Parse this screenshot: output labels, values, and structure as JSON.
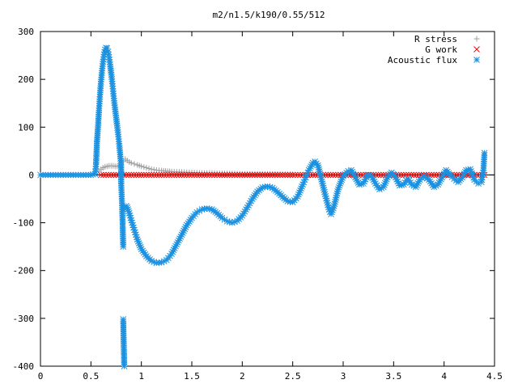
{
  "chart_data": {
    "type": "scatter",
    "title": "m2/n1.5/k190/0.55/512",
    "xlabel": "",
    "ylabel": "",
    "xlim": [
      0,
      4.5
    ],
    "ylim": [
      -400,
      300
    ],
    "x_ticks": [
      {
        "value": 0,
        "label": "0"
      },
      {
        "value": 0.5,
        "label": "0.5"
      },
      {
        "value": 1,
        "label": "1"
      },
      {
        "value": 1.5,
        "label": "1.5"
      },
      {
        "value": 2,
        "label": "2"
      },
      {
        "value": 2.5,
        "label": "2.5"
      },
      {
        "value": 3,
        "label": "3"
      },
      {
        "value": 3.5,
        "label": "3.5"
      },
      {
        "value": 4,
        "label": "4"
      },
      {
        "value": 4.5,
        "label": "4.5"
      }
    ],
    "y_ticks": [
      {
        "value": 300,
        "label": "300"
      },
      {
        "value": 200,
        "label": "200"
      },
      {
        "value": 100,
        "label": "100"
      },
      {
        "value": 0,
        "label": "0"
      },
      {
        "value": -100,
        "label": "-100"
      },
      {
        "value": -200,
        "label": "-200"
      },
      {
        "value": -300,
        "label": "-300"
      },
      {
        "value": -400,
        "label": "-400"
      }
    ],
    "grid": false,
    "legend_position": "top-right",
    "series": [
      {
        "name": "R stress",
        "marker": "plus",
        "color": "#a0a0a0",
        "points": [
          [
            0.58,
            8
          ],
          [
            0.6,
            12
          ],
          [
            0.62,
            15
          ],
          [
            0.64,
            17
          ],
          [
            0.66,
            18
          ],
          [
            0.68,
            19
          ],
          [
            0.7,
            19
          ],
          [
            0.72,
            19
          ],
          [
            0.74,
            18
          ],
          [
            0.76,
            18
          ],
          [
            0.78,
            19
          ],
          [
            0.8,
            22
          ],
          [
            0.82,
            28
          ],
          [
            0.84,
            33
          ],
          [
            0.86,
            30
          ],
          [
            0.88,
            27
          ],
          [
            0.9,
            25
          ],
          [
            0.93,
            23
          ],
          [
            0.96,
            21
          ],
          [
            1.0,
            18
          ],
          [
            1.05,
            15
          ],
          [
            1.1,
            12
          ],
          [
            1.15,
            10
          ],
          [
            1.2,
            9
          ],
          [
            1.3,
            7
          ],
          [
            1.4,
            6
          ],
          [
            1.5,
            5
          ],
          [
            1.6,
            4
          ],
          [
            1.7,
            4
          ],
          [
            1.8,
            3
          ],
          [
            1.9,
            3
          ],
          [
            2.0,
            2
          ],
          [
            2.1,
            2
          ],
          [
            2.2,
            2
          ],
          [
            2.3,
            2
          ],
          [
            2.4,
            1
          ],
          [
            2.5,
            1
          ]
        ]
      },
      {
        "name": "G work",
        "marker": "cross",
        "color": "#ff0000",
        "points": [
          [
            0.6,
            0
          ],
          [
            0.7,
            0
          ],
          [
            0.8,
            0
          ],
          [
            0.9,
            0
          ],
          [
            1.0,
            0
          ],
          [
            1.1,
            0
          ],
          [
            1.2,
            0
          ],
          [
            1.3,
            0
          ],
          [
            1.4,
            0
          ],
          [
            1.5,
            0
          ],
          [
            1.6,
            0
          ],
          [
            1.7,
            0
          ],
          [
            1.8,
            0
          ],
          [
            1.9,
            0
          ],
          [
            2.0,
            0
          ],
          [
            2.1,
            0
          ],
          [
            2.2,
            0
          ],
          [
            2.3,
            0
          ],
          [
            2.4,
            0
          ],
          [
            2.5,
            0
          ],
          [
            2.6,
            0
          ],
          [
            2.7,
            0
          ],
          [
            2.8,
            0
          ],
          [
            2.9,
            0
          ],
          [
            3.0,
            0
          ],
          [
            3.1,
            0
          ],
          [
            3.2,
            0
          ],
          [
            3.3,
            0
          ],
          [
            3.4,
            0
          ],
          [
            3.5,
            0
          ],
          [
            3.6,
            0
          ],
          [
            3.7,
            0
          ],
          [
            3.8,
            0
          ],
          [
            3.9,
            0
          ],
          [
            4.0,
            0
          ],
          [
            4.1,
            0
          ],
          [
            4.2,
            0
          ],
          [
            4.3,
            0
          ],
          [
            4.4,
            0
          ]
        ]
      },
      {
        "name": "Acoustic flux",
        "marker": "star",
        "color": "#1a90e0",
        "points": [
          [
            0.0,
            0
          ],
          [
            0.05,
            0
          ],
          [
            0.1,
            0
          ],
          [
            0.15,
            0
          ],
          [
            0.2,
            0
          ],
          [
            0.25,
            0
          ],
          [
            0.3,
            0
          ],
          [
            0.35,
            0
          ],
          [
            0.4,
            0
          ],
          [
            0.45,
            0
          ],
          [
            0.5,
            0
          ],
          [
            0.54,
            2
          ],
          [
            0.55,
            18
          ],
          [
            0.56,
            70
          ],
          [
            0.57,
            100
          ],
          [
            0.58,
            135
          ],
          [
            0.59,
            168
          ],
          [
            0.6,
            195
          ],
          [
            0.61,
            218
          ],
          [
            0.62,
            237
          ],
          [
            0.63,
            252
          ],
          [
            0.64,
            262
          ],
          [
            0.65,
            266
          ],
          [
            0.66,
            265
          ],
          [
            0.67,
            258
          ],
          [
            0.68,
            246
          ],
          [
            0.69,
            231
          ],
          [
            0.7,
            214
          ],
          [
            0.71,
            196
          ],
          [
            0.72,
            175
          ],
          [
            0.73,
            155
          ],
          [
            0.74,
            137
          ],
          [
            0.75,
            120
          ],
          [
            0.76,
            103
          ],
          [
            0.77,
            85
          ],
          [
            0.78,
            65
          ],
          [
            0.79,
            43
          ],
          [
            0.8,
            16
          ],
          [
            0.8,
            -18
          ],
          [
            0.81,
            -68
          ],
          [
            0.82,
            -150
          ],
          [
            0.82,
            -302
          ],
          [
            0.83,
            -400
          ],
          [
            0.83,
            -70
          ],
          [
            0.85,
            -65
          ],
          [
            0.86,
            -68
          ],
          [
            0.88,
            -80
          ],
          [
            0.9,
            -95
          ],
          [
            0.93,
            -115
          ],
          [
            0.96,
            -135
          ],
          [
            1.0,
            -155
          ],
          [
            1.05,
            -170
          ],
          [
            1.1,
            -180
          ],
          [
            1.15,
            -184
          ],
          [
            1.2,
            -183
          ],
          [
            1.25,
            -178
          ],
          [
            1.3,
            -165
          ],
          [
            1.35,
            -145
          ],
          [
            1.4,
            -125
          ],
          [
            1.45,
            -105
          ],
          [
            1.5,
            -90
          ],
          [
            1.55,
            -78
          ],
          [
            1.6,
            -72
          ],
          [
            1.65,
            -70
          ],
          [
            1.7,
            -72
          ],
          [
            1.75,
            -80
          ],
          [
            1.8,
            -90
          ],
          [
            1.85,
            -97
          ],
          [
            1.9,
            -100
          ],
          [
            1.95,
            -96
          ],
          [
            2.0,
            -85
          ],
          [
            2.05,
            -68
          ],
          [
            2.1,
            -50
          ],
          [
            2.15,
            -35
          ],
          [
            2.2,
            -26
          ],
          [
            2.25,
            -24
          ],
          [
            2.3,
            -27
          ],
          [
            2.35,
            -36
          ],
          [
            2.4,
            -46
          ],
          [
            2.45,
            -55
          ],
          [
            2.5,
            -57
          ],
          [
            2.55,
            -45
          ],
          [
            2.6,
            -20
          ],
          [
            2.63,
            -5
          ],
          [
            2.66,
            10
          ],
          [
            2.7,
            25
          ],
          [
            2.72,
            28
          ],
          [
            2.75,
            20
          ],
          [
            2.78,
            -5
          ],
          [
            2.82,
            -40
          ],
          [
            2.86,
            -72
          ],
          [
            2.88,
            -82
          ],
          [
            2.91,
            -65
          ],
          [
            2.95,
            -30
          ],
          [
            3.0,
            -2
          ],
          [
            3.05,
            8
          ],
          [
            3.08,
            10
          ],
          [
            3.12,
            -5
          ],
          [
            3.16,
            -20
          ],
          [
            3.2,
            -18
          ],
          [
            3.24,
            0
          ],
          [
            3.28,
            -2
          ],
          [
            3.32,
            -18
          ],
          [
            3.36,
            -30
          ],
          [
            3.4,
            -25
          ],
          [
            3.44,
            -5
          ],
          [
            3.48,
            5
          ],
          [
            3.52,
            -5
          ],
          [
            3.56,
            -22
          ],
          [
            3.6,
            -20
          ],
          [
            3.64,
            -8
          ],
          [
            3.68,
            -20
          ],
          [
            3.72,
            -25
          ],
          [
            3.76,
            -10
          ],
          [
            3.8,
            -2
          ],
          [
            3.85,
            -10
          ],
          [
            3.9,
            -25
          ],
          [
            3.94,
            -20
          ],
          [
            3.98,
            -5
          ],
          [
            4.02,
            10
          ],
          [
            4.06,
            0
          ],
          [
            4.1,
            -8
          ],
          [
            4.14,
            -15
          ],
          [
            4.18,
            -5
          ],
          [
            4.22,
            10
          ],
          [
            4.26,
            12
          ],
          [
            4.3,
            -10
          ],
          [
            4.34,
            -18
          ],
          [
            4.37,
            -15
          ],
          [
            4.39,
            10
          ],
          [
            4.4,
            46
          ]
        ]
      }
    ]
  }
}
